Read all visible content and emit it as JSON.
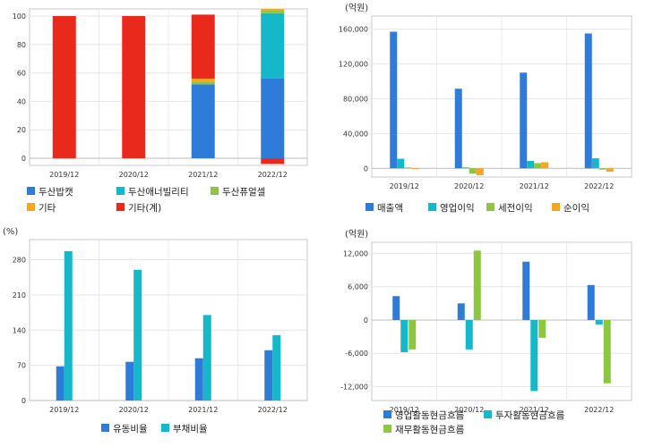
{
  "chart_data": [
    {
      "type": "bar",
      "stacked": true,
      "categories": [
        "2019/12",
        "2020/12",
        "2021/12",
        "2022/12"
      ],
      "ylim": [
        -5,
        105
      ],
      "yticks": [
        0,
        20,
        40,
        60,
        80,
        100
      ],
      "unit": "",
      "grid": true,
      "legend": "bottom",
      "series": [
        {
          "name": "두산밥캣",
          "color": "#2f7bd9",
          "values": [
            0,
            0,
            52,
            56
          ]
        },
        {
          "name": "두산애너빌리티",
          "color": "#14b8c8",
          "values": [
            0,
            0,
            0,
            46
          ]
        },
        {
          "name": "두산퓨얼셀",
          "color": "#8dc63f",
          "values": [
            0,
            0,
            2,
            2
          ]
        },
        {
          "name": "기타",
          "color": "#f5a623",
          "values": [
            0,
            0,
            2,
            1
          ]
        },
        {
          "name": "기타(계)",
          "color": "#e8291c",
          "values": [
            100,
            100,
            45,
            -4
          ]
        }
      ]
    },
    {
      "type": "bar",
      "categories": [
        "2019/12",
        "2020/12",
        "2021/12",
        "2022/12"
      ],
      "ylim": [
        -10000,
        175000
      ],
      "yticks": [
        0,
        40000,
        80000,
        120000,
        160000
      ],
      "unit": "(억원)",
      "grid": true,
      "legend": "bottom",
      "series": [
        {
          "name": "매출액",
          "color": "#2f7bd9",
          "values": [
            157000,
            91500,
            110000,
            155000
          ]
        },
        {
          "name": "영업이익",
          "color": "#14b8c8",
          "values": [
            11000,
            1000,
            8500,
            11500
          ]
        },
        {
          "name": "세전이익",
          "color": "#8dc63f",
          "values": [
            1000,
            -6000,
            6000,
            -1500
          ]
        },
        {
          "name": "순이익",
          "color": "#f5a623",
          "values": [
            -1000,
            -8000,
            7000,
            -4000
          ]
        }
      ]
    },
    {
      "type": "bar",
      "categories": [
        "2019/12",
        "2020/12",
        "2021/12",
        "2022/12"
      ],
      "ylim": [
        0,
        320
      ],
      "yticks": [
        0,
        70,
        140,
        210,
        280
      ],
      "unit": "(%)",
      "grid": true,
      "legend": "bottom",
      "series": [
        {
          "name": "유동비율",
          "color": "#2f7bd9",
          "values": [
            68,
            77,
            84,
            100
          ]
        },
        {
          "name": "부채비율",
          "color": "#14b8c8",
          "values": [
            297,
            260,
            170,
            130
          ]
        }
      ]
    },
    {
      "type": "bar",
      "categories": [
        "2019/12",
        "2020/12",
        "2021/12",
        "2022/12"
      ],
      "ylim": [
        -14500,
        14000
      ],
      "yticks": [
        -12000,
        -6000,
        0,
        6000,
        12000
      ],
      "unit": "(억원)",
      "grid": true,
      "legend": "bottom",
      "series": [
        {
          "name": "영업활동현금흐름",
          "color": "#2f7bd9",
          "values": [
            4300,
            3000,
            10500,
            6300
          ]
        },
        {
          "name": "투자활동현금흐름",
          "color": "#14b8c8",
          "values": [
            -5800,
            -5300,
            -12800,
            -800
          ]
        },
        {
          "name": "재무활동현금흐름",
          "color": "#8dc63f",
          "values": [
            -5300,
            12500,
            -3200,
            -11400
          ]
        }
      ]
    }
  ]
}
